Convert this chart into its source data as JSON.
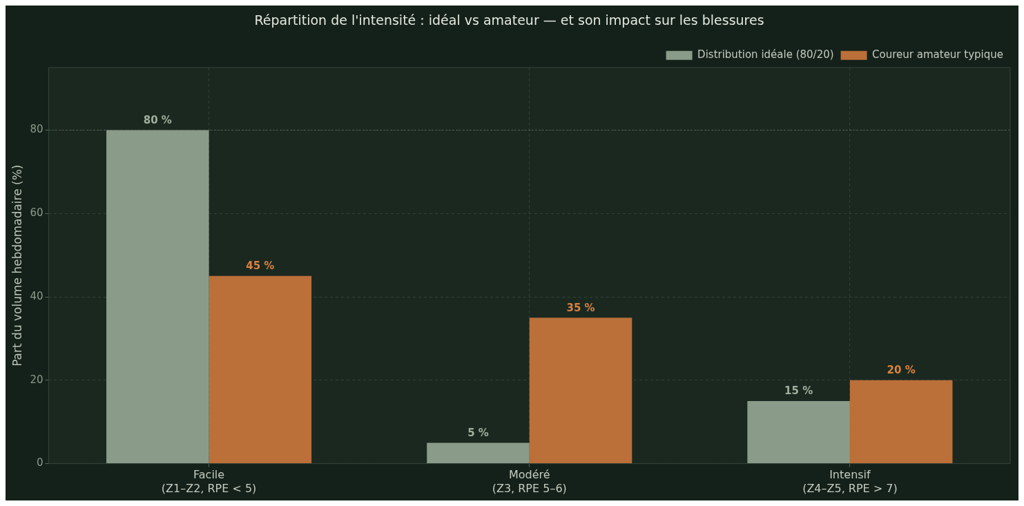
{
  "chart_data": {
    "type": "bar",
    "title": "Répartition de l'intensité : idéal vs amateur — et son impact sur les blessures",
    "ylabel": "Part du volume hebdomadaire (%)",
    "categories": [
      "Facile\n(Z1–Z2, RPE < 5)",
      "Modéré\n(Z3, RPE 5–6)",
      "Intensif\n(Z4–Z5, RPE > 7)"
    ],
    "series": [
      {
        "name": "Distribution idéale (80/20)",
        "color": "#8a9b89",
        "values": [
          80,
          5,
          15
        ],
        "value_labels": [
          "80 %",
          "5 %",
          "15 %"
        ]
      },
      {
        "name": "Coureur amateur typique",
        "color": "#bb6f39",
        "values": [
          45,
          35,
          20
        ],
        "value_labels": [
          "45 %",
          "35 %",
          "20 %"
        ]
      }
    ],
    "ylim": [
      0,
      95
    ],
    "yticks": [
      0,
      20,
      40,
      60,
      80
    ],
    "grid": true,
    "legend": "top right",
    "ref_lines": [
      {
        "axis": "y",
        "value": 80,
        "line_style": "dotted",
        "color": "#5d6f60"
      }
    ]
  }
}
